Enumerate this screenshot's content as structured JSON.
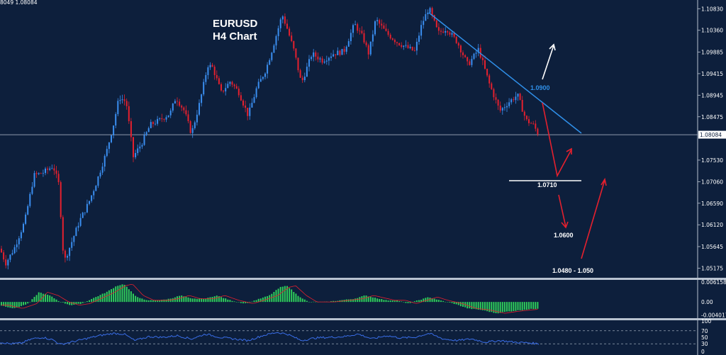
{
  "chart_data": {
    "type": "candlestick",
    "title": "EURUSD",
    "subtitle": "H4 Chart",
    "header_text": "8049 1.08084",
    "price_axis": {
      "range": [
        1.0495,
        1.1102
      ],
      "ticks": [
        "1.10830",
        "1.10360",
        "1.09885",
        "1.09415",
        "1.08945",
        "1.08475",
        "1.08084",
        "1.07530",
        "1.07060",
        "1.06590",
        "1.06120",
        "1.05645",
        "1.05175"
      ],
      "current_price": "1.08084",
      "current_price_value": 1.08084
    },
    "price_path": [
      [
        0,
        1.056
      ],
      [
        8,
        1.0528
      ],
      [
        20,
        1.056
      ],
      [
        35,
        1.062
      ],
      [
        48,
        1.072
      ],
      [
        60,
        1.0725
      ],
      [
        75,
        1.074
      ],
      [
        83,
        1.07
      ],
      [
        90,
        1.053
      ],
      [
        100,
        1.057
      ],
      [
        112,
        1.062
      ],
      [
        125,
        1.066
      ],
      [
        135,
        1.07
      ],
      [
        150,
        1.077
      ],
      [
        160,
        1.083
      ],
      [
        168,
        1.089
      ],
      [
        178,
        1.088
      ],
      [
        188,
        1.076
      ],
      [
        200,
        1.079
      ],
      [
        212,
        1.083
      ],
      [
        225,
        1.084
      ],
      [
        240,
        1.0855
      ],
      [
        248,
        1.089
      ],
      [
        260,
        1.086
      ],
      [
        270,
        1.081
      ],
      [
        282,
        1.088
      ],
      [
        293,
        1.096
      ],
      [
        300,
        1.0955
      ],
      [
        312,
        1.09
      ],
      [
        325,
        1.0925
      ],
      [
        337,
        1.09
      ],
      [
        350,
        1.085
      ],
      [
        362,
        1.091
      ],
      [
        375,
        1.095
      ],
      [
        385,
        1.1
      ],
      [
        398,
        1.107
      ],
      [
        405,
        1.104
      ],
      [
        415,
        1.099
      ],
      [
        425,
        1.092
      ],
      [
        440,
        1.0985
      ],
      [
        455,
        1.097
      ],
      [
        470,
        1.0985
      ],
      [
        485,
        1.099
      ],
      [
        500,
        1.105
      ],
      [
        512,
        1.102
      ],
      [
        520,
        1.0985
      ],
      [
        530,
        1.106
      ],
      [
        545,
        1.103
      ],
      [
        560,
        1.101
      ],
      [
        572,
        1.1
      ],
      [
        585,
        1.099
      ],
      [
        595,
        1.105
      ],
      [
        605,
        1.1085
      ],
      [
        618,
        1.103
      ],
      [
        630,
        1.104
      ],
      [
        645,
        1.101
      ],
      [
        660,
        1.096
      ],
      [
        675,
        1.0995
      ],
      [
        690,
        1.092
      ],
      [
        705,
        1.086
      ],
      [
        718,
        1.088
      ],
      [
        730,
        1.0895
      ],
      [
        742,
        1.084
      ],
      [
        752,
        1.083
      ],
      [
        760,
        1.0808
      ]
    ],
    "indicators": {
      "macd": {
        "ticks": [
          "0.006158",
          "0.00",
          "-0.004017"
        ],
        "histogram_path": [
          [
            0,
            -0.001
          ],
          [
            20,
            -0.002
          ],
          [
            40,
            -0.0005
          ],
          [
            55,
            0.003
          ],
          [
            70,
            0.002
          ],
          [
            85,
            0.0
          ],
          [
            100,
            -0.001
          ],
          [
            115,
            -0.0005
          ],
          [
            135,
            0.0015
          ],
          [
            150,
            0.003
          ],
          [
            165,
            0.005
          ],
          [
            175,
            0.0055
          ],
          [
            190,
            0.002
          ],
          [
            205,
            0.0005
          ],
          [
            225,
            0.0005
          ],
          [
            240,
            0.001
          ],
          [
            255,
            0.002
          ],
          [
            270,
            0.001
          ],
          [
            290,
            0.001
          ],
          [
            305,
            0.002
          ],
          [
            325,
            0.0005
          ],
          [
            345,
            -0.0005
          ],
          [
            360,
            0.0005
          ],
          [
            380,
            0.002
          ],
          [
            395,
            0.0045
          ],
          [
            405,
            0.005
          ],
          [
            420,
            0.002
          ],
          [
            435,
            0.0
          ],
          [
            460,
            0.0
          ],
          [
            480,
            0.0005
          ],
          [
            500,
            0.001
          ],
          [
            515,
            0.002
          ],
          [
            525,
            0.0015
          ],
          [
            545,
            0.0005
          ],
          [
            560,
            0.0005
          ],
          [
            575,
            -0.0005
          ],
          [
            590,
            0.0005
          ],
          [
            605,
            0.0015
          ],
          [
            620,
            0.0005
          ],
          [
            640,
            -0.0005
          ],
          [
            660,
            -0.002
          ],
          [
            680,
            -0.0025
          ],
          [
            700,
            -0.0035
          ],
          [
            715,
            -0.003
          ],
          [
            735,
            -0.0025
          ],
          [
            760,
            -0.002
          ]
        ]
      },
      "rsi": {
        "ticks": [
          "100",
          "70",
          "50",
          "30",
          "0"
        ],
        "path": [
          [
            0,
            35
          ],
          [
            15,
            30
          ],
          [
            30,
            32
          ],
          [
            45,
            45
          ],
          [
            60,
            50
          ],
          [
            75,
            42
          ],
          [
            85,
            28
          ],
          [
            100,
            35
          ],
          [
            120,
            45
          ],
          [
            140,
            55
          ],
          [
            160,
            62
          ],
          [
            175,
            60
          ],
          [
            190,
            40
          ],
          [
            210,
            52
          ],
          [
            230,
            50
          ],
          [
            250,
            55
          ],
          [
            270,
            45
          ],
          [
            290,
            60
          ],
          [
            310,
            50
          ],
          [
            330,
            45
          ],
          [
            350,
            40
          ],
          [
            370,
            55
          ],
          [
            390,
            65
          ],
          [
            405,
            60
          ],
          [
            425,
            40
          ],
          [
            445,
            48
          ],
          [
            465,
            50
          ],
          [
            485,
            52
          ],
          [
            505,
            60
          ],
          [
            525,
            45
          ],
          [
            545,
            55
          ],
          [
            565,
            48
          ],
          [
            585,
            50
          ],
          [
            605,
            62
          ],
          [
            625,
            45
          ],
          [
            645,
            40
          ],
          [
            665,
            45
          ],
          [
            685,
            35
          ],
          [
            705,
            40
          ],
          [
            725,
            35
          ],
          [
            745,
            33
          ],
          [
            760,
            30
          ]
        ]
      }
    },
    "annotations": [
      {
        "label": "1.0900",
        "color": "#2f8fe8"
      },
      {
        "label": "1.0710",
        "color": "#ffffff"
      },
      {
        "label": "1.0600",
        "color": "#ffffff"
      },
      {
        "label": "1.0480 - 1.050",
        "color": "#ffffff"
      }
    ],
    "colors": {
      "background": "#0d1f3c",
      "bull": "#3a8ef0",
      "bear": "#e5202e",
      "trendline": "#2f8fe8",
      "macd_histogram": "#2ecc5a",
      "macd_signal": "#e5202e",
      "rsi_line": "#3a6ee8",
      "panel_border": "#b8c2d0",
      "axis_text": "#ffffff"
    }
  }
}
